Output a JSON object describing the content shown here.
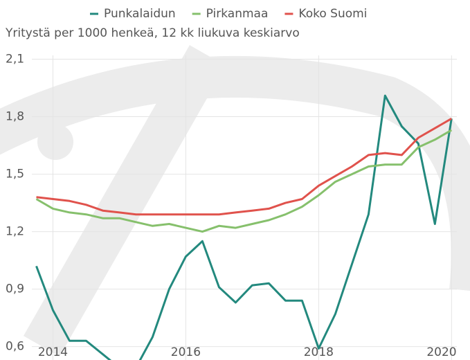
{
  "chart_data": {
    "type": "line",
    "subtitle": "Yritystä per 1000 henkeä, 12 kk liukuva keskiarvo",
    "x": [
      2013.75,
      2014,
      2014.25,
      2014.5,
      2014.75,
      2015,
      2015.25,
      2015.5,
      2015.75,
      2016,
      2016.25,
      2016.5,
      2016.75,
      2017,
      2017.25,
      2017.5,
      2017.75,
      2018,
      2018.25,
      2018.5,
      2018.75,
      2019,
      2019.25,
      2019.5,
      2019.75,
      2020
    ],
    "series": [
      {
        "name": "Punkalaidun",
        "color": "#23897e",
        "values": [
          1.02,
          0.79,
          0.63,
          0.63,
          0.56,
          0.49,
          0.49,
          0.65,
          0.9,
          1.07,
          1.15,
          0.91,
          0.83,
          0.92,
          0.93,
          0.84,
          0.84,
          0.59,
          0.77,
          1.03,
          1.29,
          1.91,
          1.75,
          1.66,
          1.24,
          1.79
        ]
      },
      {
        "name": "Pirkanmaa",
        "color": "#86c06c",
        "values": [
          1.37,
          1.32,
          1.3,
          1.29,
          1.27,
          1.27,
          1.25,
          1.23,
          1.24,
          1.22,
          1.2,
          1.23,
          1.22,
          1.24,
          1.26,
          1.29,
          1.33,
          1.39,
          1.46,
          1.5,
          1.54,
          1.55,
          1.55,
          1.64,
          1.68,
          1.73
        ]
      },
      {
        "name": "Koko Suomi",
        "color": "#e0524c",
        "values": [
          1.38,
          1.37,
          1.36,
          1.34,
          1.31,
          1.3,
          1.29,
          1.29,
          1.29,
          1.29,
          1.29,
          1.29,
          1.3,
          1.31,
          1.32,
          1.35,
          1.37,
          1.44,
          1.49,
          1.54,
          1.6,
          1.61,
          1.6,
          1.69,
          1.74,
          1.79
        ]
      }
    ],
    "xlim": [
      2013.62,
      2020.08
    ],
    "xticks": [
      2014,
      2016,
      2018,
      2020
    ],
    "ylim": [
      0.53,
      2.12
    ],
    "yticks": [
      {
        "value": 0.6,
        "label": "0,6"
      },
      {
        "value": 0.9,
        "label": "0,9"
      },
      {
        "value": 1.2,
        "label": "1,2"
      },
      {
        "value": 1.5,
        "label": "1,5"
      },
      {
        "value": 1.8,
        "label": "1,8"
      },
      {
        "value": 2.1,
        "label": "2,1"
      }
    ],
    "grid": true,
    "legend": "top"
  }
}
